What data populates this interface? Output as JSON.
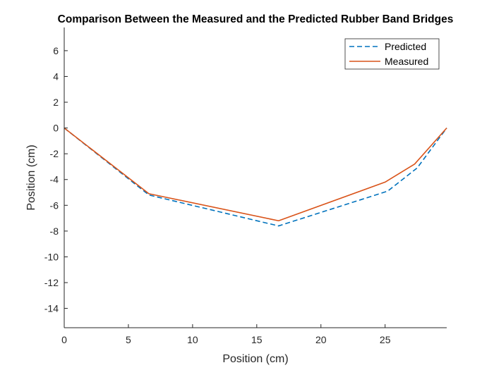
{
  "chart_data": {
    "type": "line",
    "title": "Comparison Between the Measured and the Predicted Rubber Band Bridges",
    "xlabel": "Position (cm)",
    "ylabel": "Position (cm)",
    "xlim": [
      0,
      29.8
    ],
    "ylim": [
      -15.5,
      7.8
    ],
    "xticks": [
      0,
      5,
      10,
      15,
      20,
      25
    ],
    "xtick_labels": [
      "0",
      "5",
      "10",
      "15",
      "20",
      "25"
    ],
    "yticks": [
      6,
      4,
      2,
      0,
      -2,
      -4,
      -6,
      -8,
      -10,
      -12,
      -14
    ],
    "ytick_labels": [
      "6",
      "4",
      "2",
      "0",
      "-2",
      "-4",
      "-6",
      "-8",
      "-10",
      "-12",
      "-14"
    ],
    "grid": false,
    "legend_position": "top-right",
    "series": [
      {
        "name": "Predicted",
        "style": "dashed",
        "color": "#0072BD",
        "x": [
          0,
          6.6,
          16.7,
          25.2,
          27.5,
          29.8
        ],
        "y": [
          0,
          -5.2,
          -7.6,
          -4.9,
          -3.1,
          0
        ]
      },
      {
        "name": "Measured",
        "style": "solid",
        "color": "#D95319",
        "x": [
          0,
          6.6,
          16.7,
          25.0,
          27.3,
          29.8
        ],
        "y": [
          0,
          -5.1,
          -7.2,
          -4.2,
          -2.8,
          0
        ]
      }
    ]
  }
}
